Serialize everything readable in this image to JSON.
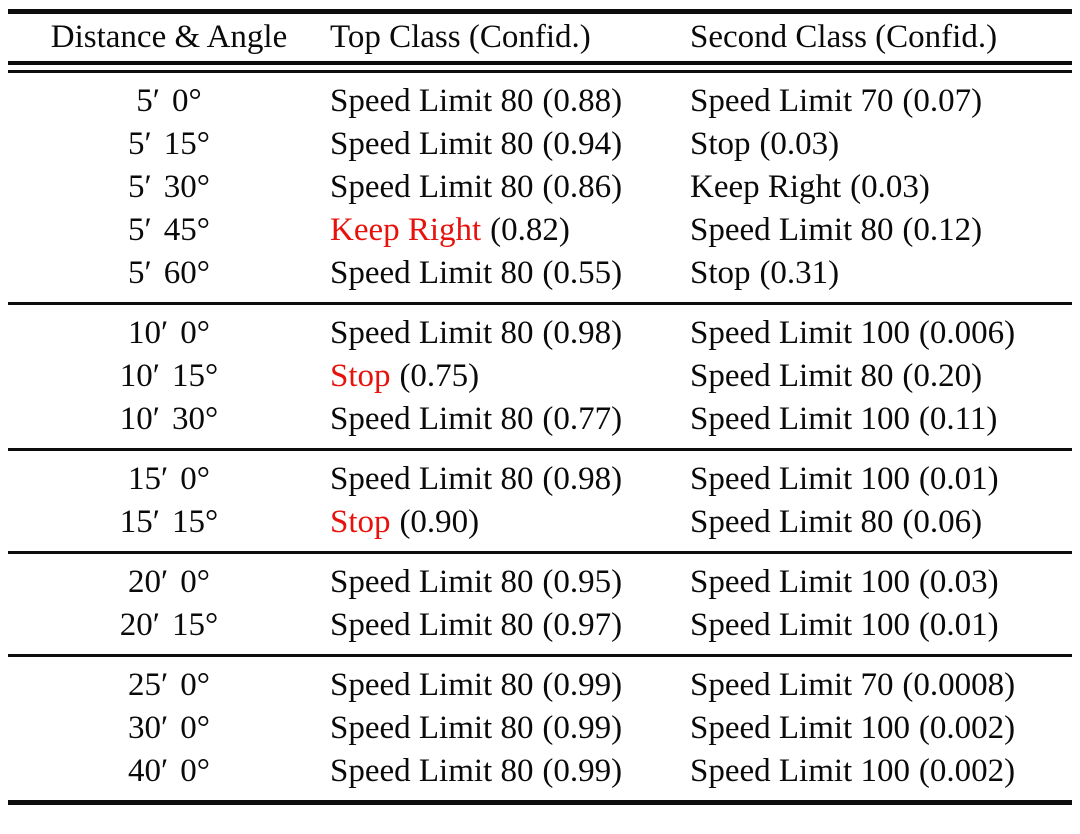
{
  "table": {
    "headers": [
      "Distance & Angle",
      "Top Class (Confid.)",
      "Second Class (Confid.)"
    ],
    "colors": {
      "highlight_red": "#e8120c",
      "text": "#0a0a0a",
      "rule": "#0d0d0d",
      "background": "#ffffff"
    },
    "groups": [
      {
        "rows": [
          {
            "dist": "5′",
            "angle": "0°",
            "top": {
              "label": "Speed Limit 80",
              "cls": "lbl",
              "conf": "(0.88)"
            },
            "second": {
              "label": "Speed Limit 70",
              "conf": "(0.07)"
            }
          },
          {
            "dist": "5′",
            "angle": "15°",
            "top": {
              "label": "Speed Limit 80",
              "cls": "lbl",
              "conf": "(0.94)"
            },
            "second": {
              "label": "Stop",
              "conf": "(0.03)"
            }
          },
          {
            "dist": "5′",
            "angle": "30°",
            "top": {
              "label": "Speed Limit 80",
              "cls": "lbl",
              "conf": "(0.86)"
            },
            "second": {
              "label": "Keep Right",
              "conf": "(0.03)"
            }
          },
          {
            "dist": "5′",
            "angle": "45°",
            "top": {
              "label": "Keep Right",
              "cls": "lbl hl",
              "conf": "(0.82)"
            },
            "second": {
              "label": "Speed Limit 80",
              "conf": "(0.12)"
            }
          },
          {
            "dist": "5′",
            "angle": "60°",
            "top": {
              "label": "Speed Limit 80",
              "cls": "lbl",
              "conf": "(0.55)"
            },
            "second": {
              "label": "Stop",
              "conf": "(0.31)"
            }
          }
        ]
      },
      {
        "rows": [
          {
            "dist": "10′",
            "angle": "0°",
            "top": {
              "label": "Speed Limit 80",
              "cls": "lbl",
              "conf": "(0.98)"
            },
            "second": {
              "label": "Speed Limit 100",
              "conf": "(0.006)"
            }
          },
          {
            "dist": "10′",
            "angle": "15°",
            "top": {
              "label": "Stop",
              "cls": "lbl hl",
              "conf": "(0.75)"
            },
            "second": {
              "label": "Speed Limit 80",
              "conf": "(0.20)"
            }
          },
          {
            "dist": "10′",
            "angle": "30°",
            "top": {
              "label": "Speed Limit 80",
              "cls": "lbl",
              "conf": "(0.77)"
            },
            "second": {
              "label": "Speed Limit 100",
              "conf": "(0.11)"
            }
          }
        ]
      },
      {
        "rows": [
          {
            "dist": "15′",
            "angle": "0°",
            "top": {
              "label": "Speed Limit 80",
              "cls": "lbl",
              "conf": "(0.98)"
            },
            "second": {
              "label": "Speed Limit 100",
              "conf": "(0.01)"
            }
          },
          {
            "dist": "15′",
            "angle": "15°",
            "top": {
              "label": "Stop",
              "cls": "lbl hl",
              "conf": "(0.90)"
            },
            "second": {
              "label": "Speed Limit 80",
              "conf": "(0.06)"
            }
          }
        ]
      },
      {
        "rows": [
          {
            "dist": "20′",
            "angle": "0°",
            "top": {
              "label": "Speed Limit 80",
              "cls": "lbl",
              "conf": "(0.95)"
            },
            "second": {
              "label": "Speed Limit 100",
              "conf": "(0.03)"
            }
          },
          {
            "dist": "20′",
            "angle": "15°",
            "top": {
              "label": "Speed Limit 80",
              "cls": "lbl",
              "conf": "(0.97)"
            },
            "second": {
              "label": "Speed Limit 100",
              "conf": "(0.01)"
            }
          }
        ]
      },
      {
        "rows": [
          {
            "dist": "25′",
            "angle": "0°",
            "top": {
              "label": "Speed Limit 80",
              "cls": "lbl",
              "conf": "(0.99)"
            },
            "second": {
              "label": "Speed Limit 70",
              "conf": "(0.0008)"
            }
          },
          {
            "dist": "30′",
            "angle": "0°",
            "top": {
              "label": "Speed Limit 80",
              "cls": "lbl",
              "conf": "(0.99)"
            },
            "second": {
              "label": "Speed Limit 100",
              "conf": "(0.002)"
            }
          },
          {
            "dist": "40′",
            "angle": "0°",
            "top": {
              "label": "Speed Limit 80",
              "cls": "lbl",
              "conf": "(0.99)"
            },
            "second": {
              "label": "Speed Limit 100",
              "conf": "(0.002)"
            }
          }
        ]
      }
    ]
  }
}
